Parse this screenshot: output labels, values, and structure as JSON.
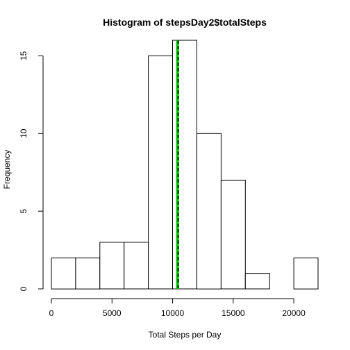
{
  "chart_data": {
    "type": "histogram",
    "title": "Histogram of stepsDay2$totalSteps",
    "xlabel": "Total Steps per Day",
    "ylabel": "Frequency",
    "xlim": [
      0,
      22000
    ],
    "ylim": [
      0,
      16
    ],
    "x_ticks": [
      0,
      5000,
      10000,
      15000,
      20000
    ],
    "y_ticks": [
      0,
      5,
      10,
      15
    ],
    "bins": [
      {
        "start": 0,
        "end": 2000,
        "count": 2
      },
      {
        "start": 2000,
        "end": 4000,
        "count": 2
      },
      {
        "start": 4000,
        "end": 6000,
        "count": 3
      },
      {
        "start": 6000,
        "end": 8000,
        "count": 3
      },
      {
        "start": 8000,
        "end": 10000,
        "count": 15
      },
      {
        "start": 10000,
        "end": 12000,
        "count": 16
      },
      {
        "start": 12000,
        "end": 14000,
        "count": 10
      },
      {
        "start": 14000,
        "end": 16000,
        "count": 7
      },
      {
        "start": 16000,
        "end": 18000,
        "count": 1
      },
      {
        "start": 18000,
        "end": 20000,
        "count": 0
      },
      {
        "start": 20000,
        "end": 22000,
        "count": 2
      }
    ],
    "reference_lines": [
      {
        "x": 10402,
        "color": "#00cc00",
        "style": "solid",
        "width": "thick"
      },
      {
        "x": 10500,
        "color": "#00cc00",
        "style": "dashed",
        "width": "thin"
      },
      {
        "x": 10450,
        "color": "#000000",
        "style": "dashed",
        "width": "thin"
      }
    ],
    "grid": false,
    "legend": "none"
  }
}
